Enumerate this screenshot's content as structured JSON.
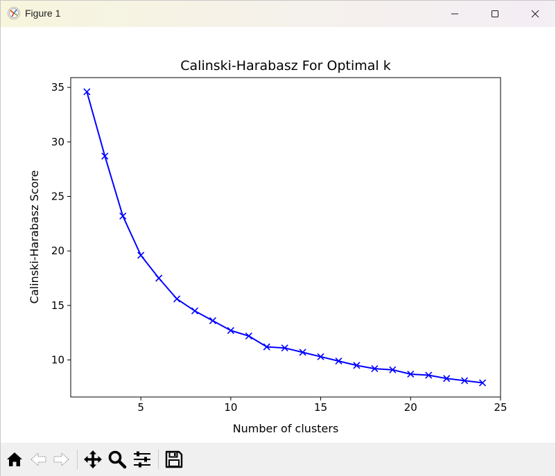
{
  "window": {
    "title": "Figure 1"
  },
  "toolbar": {
    "home": "home-icon",
    "back": "back-arrow-icon",
    "forward": "forward-arrow-icon",
    "pan": "pan-icon",
    "zoom": "zoom-icon",
    "configure": "configure-subplots-icon",
    "save": "save-icon"
  },
  "colors": {
    "line": "#0000ff",
    "axes": "#000000"
  },
  "chart_data": {
    "type": "line",
    "title": "Calinski-Harabasz For Optimal k",
    "xlabel": "Number of clusters",
    "ylabel": "Calinski-Harabasz Score",
    "x": [
      2,
      3,
      4,
      5,
      6,
      7,
      8,
      9,
      10,
      11,
      12,
      13,
      14,
      15,
      16,
      17,
      18,
      19,
      20,
      21,
      22,
      23,
      24
    ],
    "y": [
      34.6,
      28.7,
      23.2,
      19.6,
      17.5,
      15.6,
      14.5,
      13.6,
      12.7,
      12.2,
      11.2,
      11.1,
      10.7,
      10.3,
      9.9,
      9.5,
      9.2,
      9.1,
      8.7,
      8.6,
      8.3,
      8.1,
      7.9
    ],
    "marker": "x",
    "xlim": [
      1.1,
      25.0
    ],
    "ylim": [
      6.6,
      35.9
    ],
    "xticks": [
      5,
      10,
      15,
      20,
      25
    ],
    "yticks": [
      10,
      15,
      20,
      25,
      30,
      35
    ],
    "grid": false
  }
}
